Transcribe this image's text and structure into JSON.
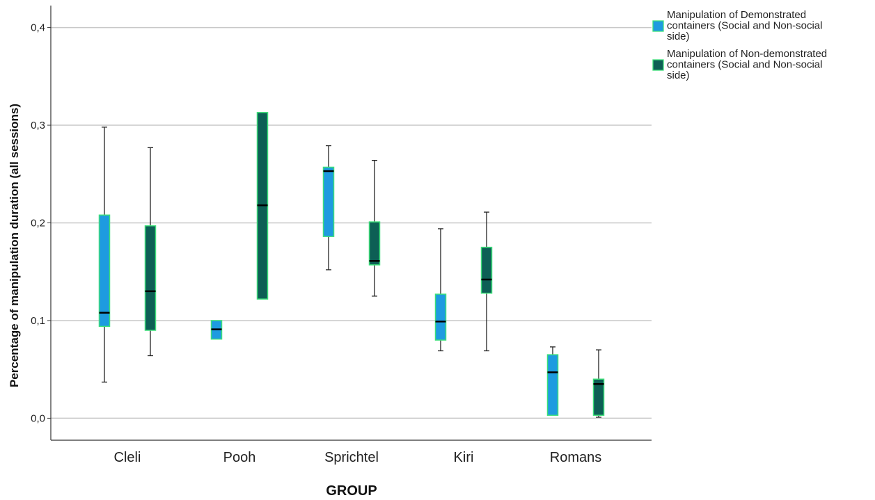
{
  "chart_data": {
    "type": "boxplot",
    "xlabel": "GROUP",
    "ylabel": "Percentage of manipulation duration (all sessions)",
    "ylim": [
      -0.0225,
      0.4225
    ],
    "yticks": [
      0.0,
      0.1,
      0.2,
      0.3,
      0.4
    ],
    "ytick_labels": [
      "0,0",
      "0,1",
      "0,2",
      "0,3",
      "0,4"
    ],
    "grid": "horizontal",
    "legend_position": "top-right outside plot",
    "categories": [
      "Cleli",
      "Pooh",
      "Sprichtel",
      "Kiri",
      "Romans"
    ],
    "series": [
      {
        "name": "Manipulation of Demonstrated containers (Social and Non-social side)",
        "name_lines": [
          "Manipulation of Demonstrated",
          "containers (Social and Non-social",
          "side)"
        ],
        "color": "#1e9be0",
        "border_color": "#3ee07a",
        "boxes": [
          {
            "min": 0.037,
            "q1": 0.094,
            "median": 0.108,
            "q3": 0.208,
            "max": 0.298
          },
          {
            "min": 0.081,
            "q1": 0.081,
            "median": 0.091,
            "q3": 0.1,
            "max": 0.1
          },
          {
            "min": 0.152,
            "q1": 0.186,
            "median": 0.253,
            "q3": 0.257,
            "max": 0.279
          },
          {
            "min": 0.069,
            "q1": 0.08,
            "median": 0.099,
            "q3": 0.127,
            "max": 0.194
          },
          {
            "min": 0.003,
            "q1": 0.003,
            "median": 0.047,
            "q3": 0.065,
            "max": 0.073
          }
        ]
      },
      {
        "name": "Manipulation of Non-demonstrated containers (Social and Non-social side)",
        "name_lines": [
          "Manipulation of Non-demonstrated",
          "containers (Social and Non-social",
          "side)"
        ],
        "color": "#0d5f55",
        "border_color": "#3ee07a",
        "boxes": [
          {
            "min": 0.064,
            "q1": 0.09,
            "median": 0.13,
            "q3": 0.197,
            "max": 0.277
          },
          {
            "min": 0.122,
            "q1": 0.122,
            "median": 0.218,
            "q3": 0.313,
            "max": 0.313
          },
          {
            "min": 0.125,
            "q1": 0.157,
            "median": 0.161,
            "q3": 0.201,
            "max": 0.264
          },
          {
            "min": 0.069,
            "q1": 0.128,
            "median": 0.142,
            "q3": 0.175,
            "max": 0.211
          },
          {
            "min": 0.001,
            "q1": 0.003,
            "median": 0.035,
            "q3": 0.04,
            "max": 0.07
          }
        ]
      }
    ]
  }
}
